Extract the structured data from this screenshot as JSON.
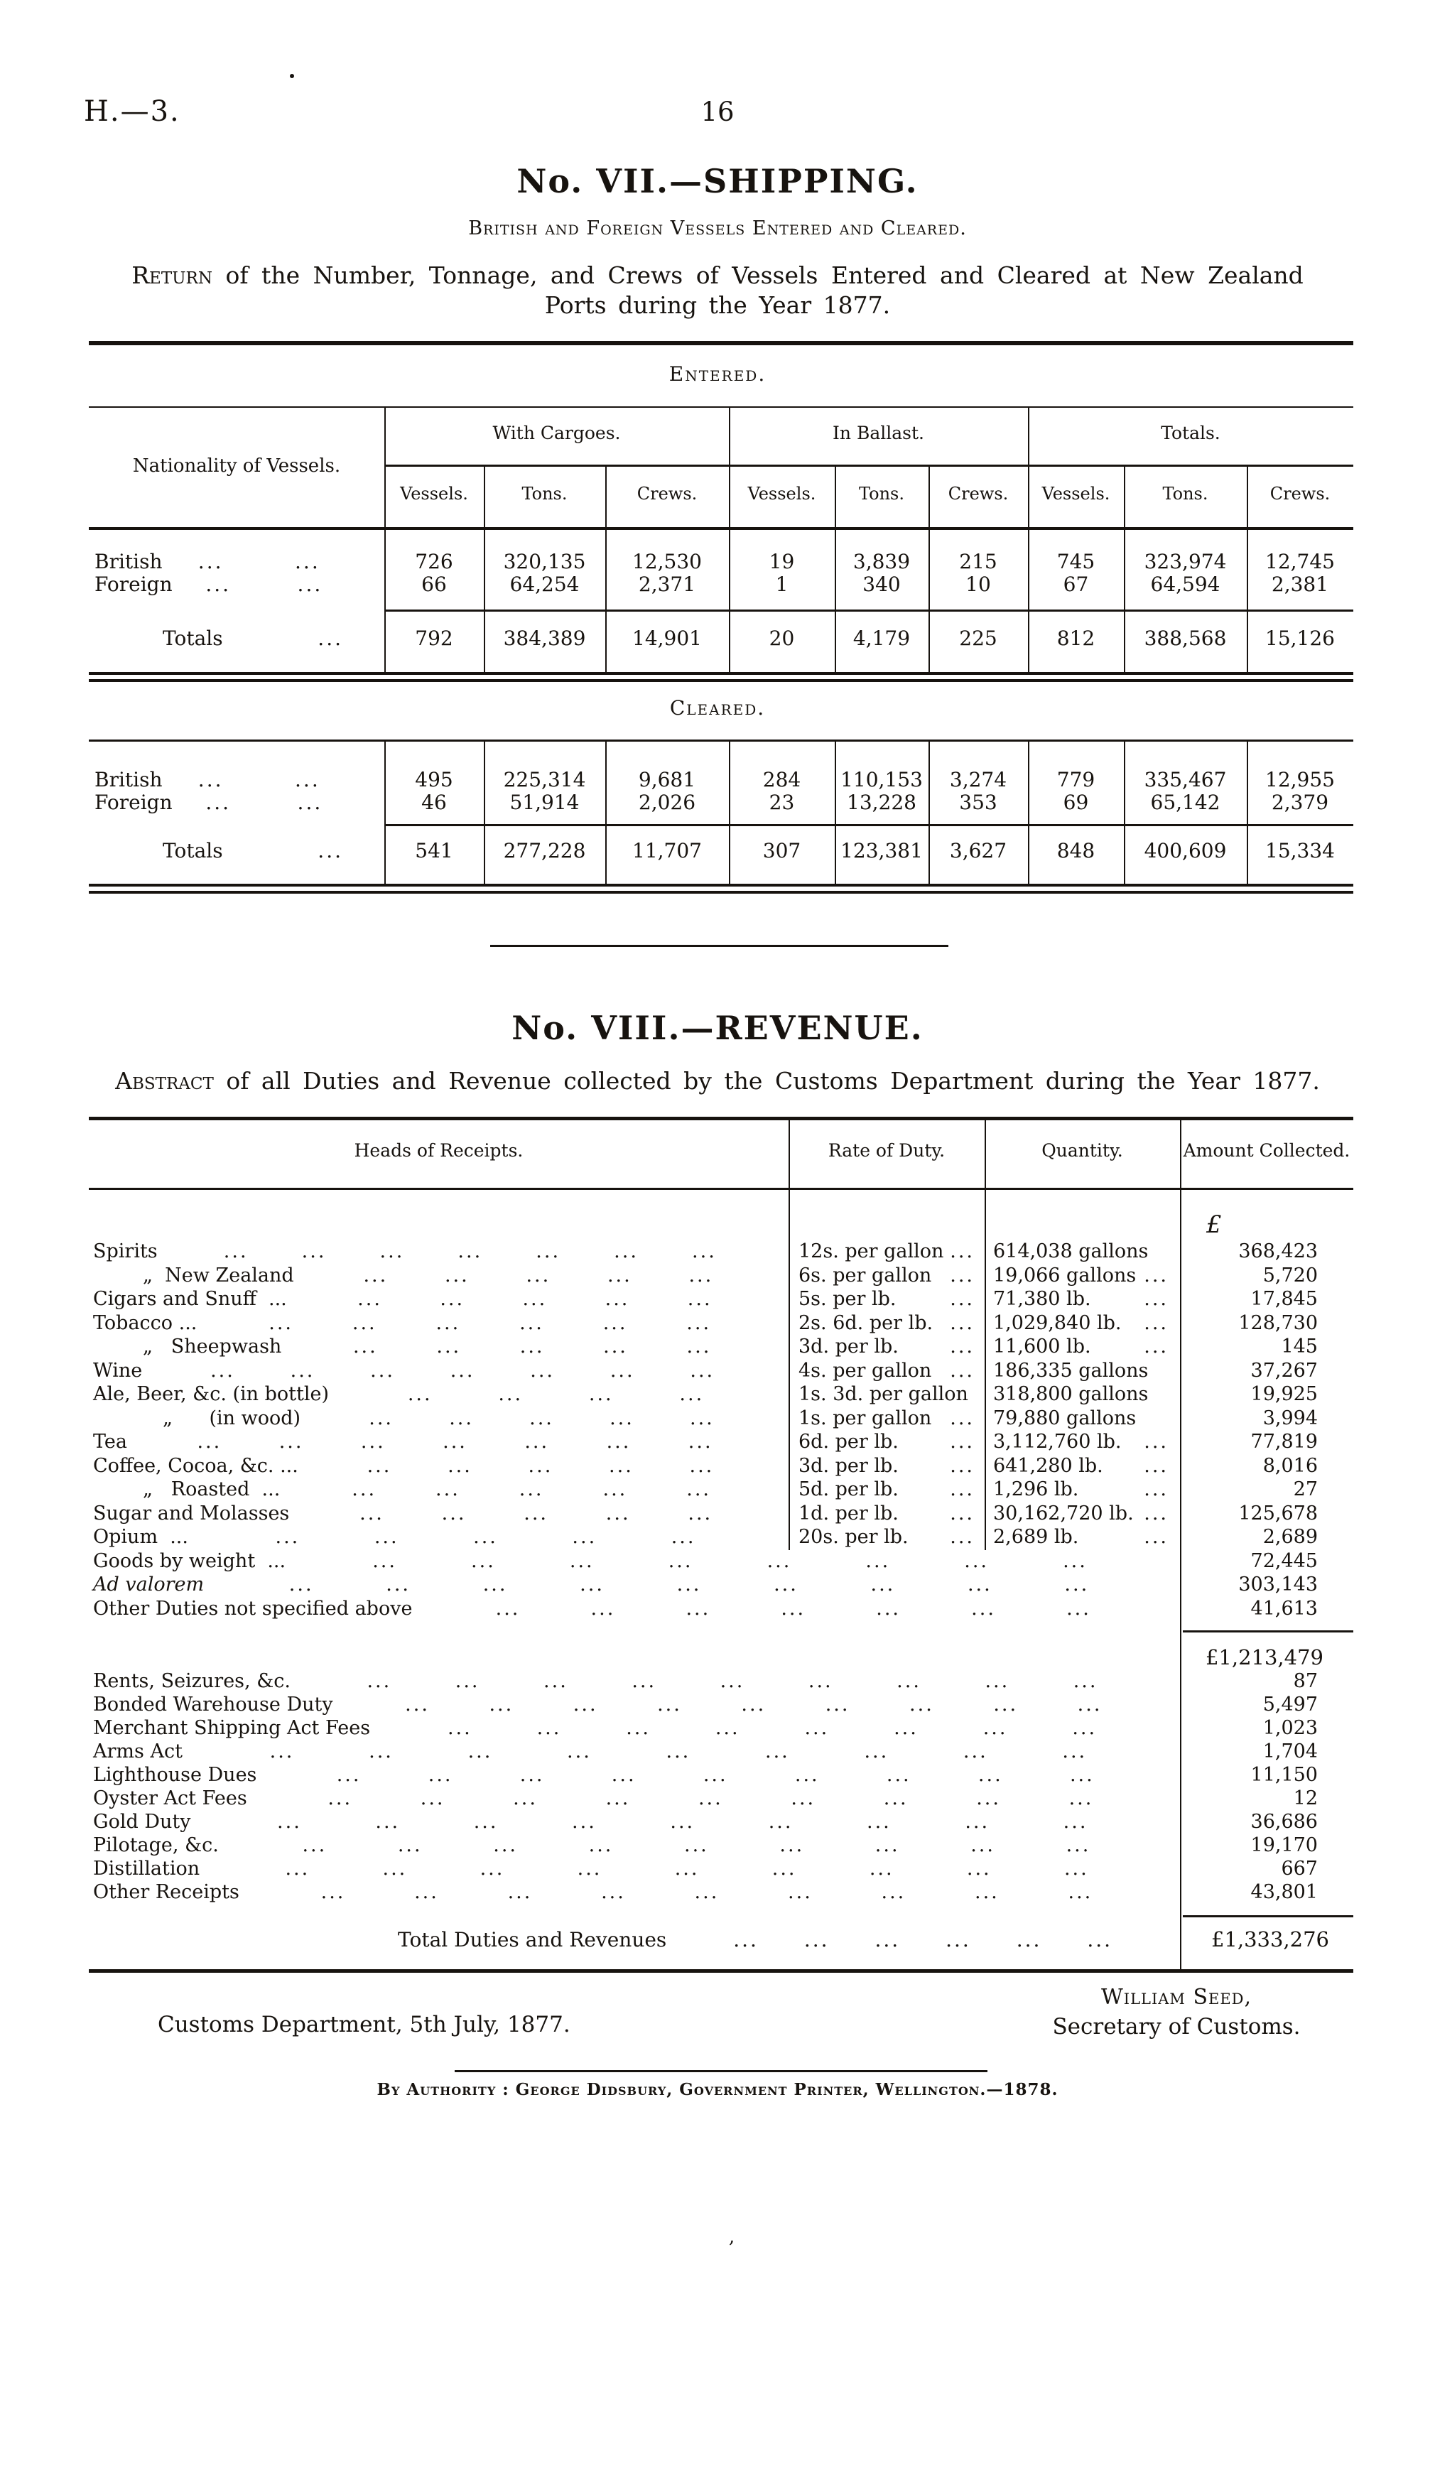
{
  "page": {
    "doc_code": "H.—3.",
    "page_number": "16"
  },
  "shipping": {
    "section_title": "No. VII.—SHIPPING.",
    "section_subtitle": "British and Foreign Vessels Entered and Cleared.",
    "return_lead": "Return",
    "return_rest": " of the Number, Tonnage, and Crews of Vessels Entered and Cleared at New Zealand",
    "return_line_2": "Ports during the Year 1877.",
    "nationality_header": "Nationality of Vessels.",
    "group_headers": [
      "With Cargoes.",
      "In Ballast.",
      "Totals."
    ],
    "sub_headers": [
      "Vessels.",
      "Tons.",
      "Crews."
    ],
    "entered": {
      "label": "Entered.",
      "rows": [
        {
          "nationality": "British",
          "values": [
            "726",
            "320,135",
            "12,530",
            "19",
            "3,839",
            "215",
            "745",
            "323,974",
            "12,745"
          ]
        },
        {
          "nationality": "Foreign",
          "values": [
            "66",
            "64,254",
            "2,371",
            "1",
            "340",
            "10",
            "67",
            "64,594",
            "2,381"
          ]
        }
      ],
      "totals": {
        "label": "Totals",
        "values": [
          "792",
          "384,389",
          "14,901",
          "20",
          "4,179",
          "225",
          "812",
          "388,568",
          "15,126"
        ]
      }
    },
    "cleared": {
      "label": "Cleared.",
      "rows": [
        {
          "nationality": "British",
          "values": [
            "495",
            "225,314",
            "9,681",
            "284",
            "110,153",
            "3,274",
            "779",
            "335,467",
            "12,955"
          ]
        },
        {
          "nationality": "Foreign",
          "values": [
            "46",
            "51,914",
            "2,026",
            "23",
            "13,228",
            "353",
            "69",
            "65,142",
            "2,379"
          ]
        }
      ],
      "totals": {
        "label": "Totals",
        "values": [
          "541",
          "277,228",
          "11,707",
          "307",
          "123,381",
          "3,627",
          "848",
          "400,609",
          "15,334"
        ]
      }
    }
  },
  "revenue": {
    "section_title": "No. VIII.—REVENUE.",
    "abstract_lead": "Abstract",
    "abstract_rest": " of all Duties and Revenue collected by the Customs Department during the Year 1877.",
    "column_headers": [
      "Heads of Receipts.",
      "Rate of Duty.",
      "Quantity.",
      "Amount Collected."
    ],
    "currency_symbol": "£",
    "duty_rows": [
      {
        "head": "Spirits",
        "level": 0,
        "dots": 7,
        "rate": "12s. per gallon",
        "rate_dots": "...",
        "qty": "614,038 gallons",
        "qty_dots": "",
        "amount": "368,423"
      },
      {
        "head": "„  New Zealand",
        "level": 1,
        "dots": 5,
        "rate": "6s. per gallon",
        "rate_dots": "...",
        "qty": "19,066 gallons",
        "qty_dots": "...",
        "amount": "5,720"
      },
      {
        "head": "Cigars and Snuff  ...",
        "level": 0,
        "dots": 5,
        "rate": "5s. per lb.",
        "rate_dots": "...",
        "qty": "71,380 lb.",
        "qty_dots": "...",
        "amount": "17,845"
      },
      {
        "head": "Tobacco ...",
        "level": 0,
        "dots": 6,
        "rate": "2s. 6d. per lb.",
        "rate_dots": "...",
        "qty": "1,029,840 lb.",
        "qty_dots": "...",
        "amount": "128,730"
      },
      {
        "head": "„   Sheepwash",
        "level": 1,
        "dots": 5,
        "rate": "3d. per lb.",
        "rate_dots": "...",
        "qty": "11,600 lb.",
        "qty_dots": "...",
        "amount": "145"
      },
      {
        "head": "Wine",
        "level": 0,
        "dots": 7,
        "rate": "4s. per gallon",
        "rate_dots": "...",
        "qty": "186,335 gallons",
        "qty_dots": "",
        "amount": "37,267"
      },
      {
        "head": "Ale, Beer, &c. (in bottle)",
        "level": 0,
        "dots": 4,
        "rate": "1s. 3d. per gallon",
        "rate_dots": "",
        "qty": "318,800 gallons",
        "qty_dots": "",
        "amount": "19,925"
      },
      {
        "head": "„      (in wood)",
        "level": 2,
        "dots": 5,
        "rate": "1s. per gallon",
        "rate_dots": "...",
        "qty": "79,880 gallons",
        "qty_dots": "",
        "amount": "3,994"
      },
      {
        "head": "Tea",
        "level": 0,
        "dots": 7,
        "rate": "6d. per lb.",
        "rate_dots": "...",
        "qty": "3,112,760 lb.",
        "qty_dots": "...",
        "amount": "77,819"
      },
      {
        "head": "Coffee, Cocoa, &c. ...",
        "level": 0,
        "dots": 5,
        "rate": "3d. per lb.",
        "rate_dots": "...",
        "qty": "641,280 lb.",
        "qty_dots": "...",
        "amount": "8,016"
      },
      {
        "head": "„   Roasted  ...",
        "level": 1,
        "dots": 5,
        "rate": "5d. per lb.",
        "rate_dots": "...",
        "qty": "1,296 lb.",
        "qty_dots": "...",
        "amount": "27"
      },
      {
        "head": "Sugar and Molasses",
        "level": 0,
        "dots": 5,
        "rate": "1d. per lb.",
        "rate_dots": "...",
        "qty": "30,162,720 lb.",
        "qty_dots": "...",
        "amount": "125,678"
      },
      {
        "head": "Opium  ...",
        "level": 0,
        "dots": 5,
        "rate": "20s. per lb.",
        "rate_dots": "...",
        "qty": "2,689 lb.",
        "qty_dots": "...",
        "amount": "2,689"
      },
      {
        "head": "Goods by weight  ...",
        "level": 0,
        "dots": 8,
        "wide": true,
        "amount": "72,445"
      },
      {
        "head": "Ad valorem",
        "level": 0,
        "italic": true,
        "dots": 9,
        "wide": true,
        "amount": "303,143"
      },
      {
        "head": "Other Duties not specified above",
        "level": 0,
        "dots": 7,
        "wide": true,
        "amount": "41,613"
      }
    ],
    "subtotal_amount": "£1,213,479",
    "fee_rows": [
      {
        "head": "Rents, Seizures, &c.",
        "dots": 9,
        "amount": "87"
      },
      {
        "head": "Bonded Warehouse Duty",
        "dots": 9,
        "amount": "5,497"
      },
      {
        "head": "Merchant Shipping Act Fees",
        "dots": 8,
        "amount": "1,023"
      },
      {
        "head": "Arms Act",
        "dots": 9,
        "amount": "1,704"
      },
      {
        "head": "Lighthouse Dues",
        "dots": 9,
        "amount": "11,150"
      },
      {
        "head": "Oyster Act Fees",
        "dots": 9,
        "amount": "12"
      },
      {
        "head": "Gold Duty",
        "dots": 9,
        "amount": "36,686"
      },
      {
        "head": "Pilotage, &c.",
        "dots": 9,
        "amount": "19,170"
      },
      {
        "head": "Distillation",
        "dots": 9,
        "amount": "667"
      },
      {
        "head": "Other Receipts",
        "dots": 9,
        "amount": "43,801"
      }
    ],
    "total_label": "Total Duties and Revenues",
    "total_amount": "£1,333,276"
  },
  "footer": {
    "signature_name": "William Seed,",
    "signature_title": "Secretary of Customs.",
    "dateline": "Customs Department, 5th July, 1877.",
    "imprint": "By Authority : George Didsbury, Government Printer, Wellington.—1878."
  }
}
